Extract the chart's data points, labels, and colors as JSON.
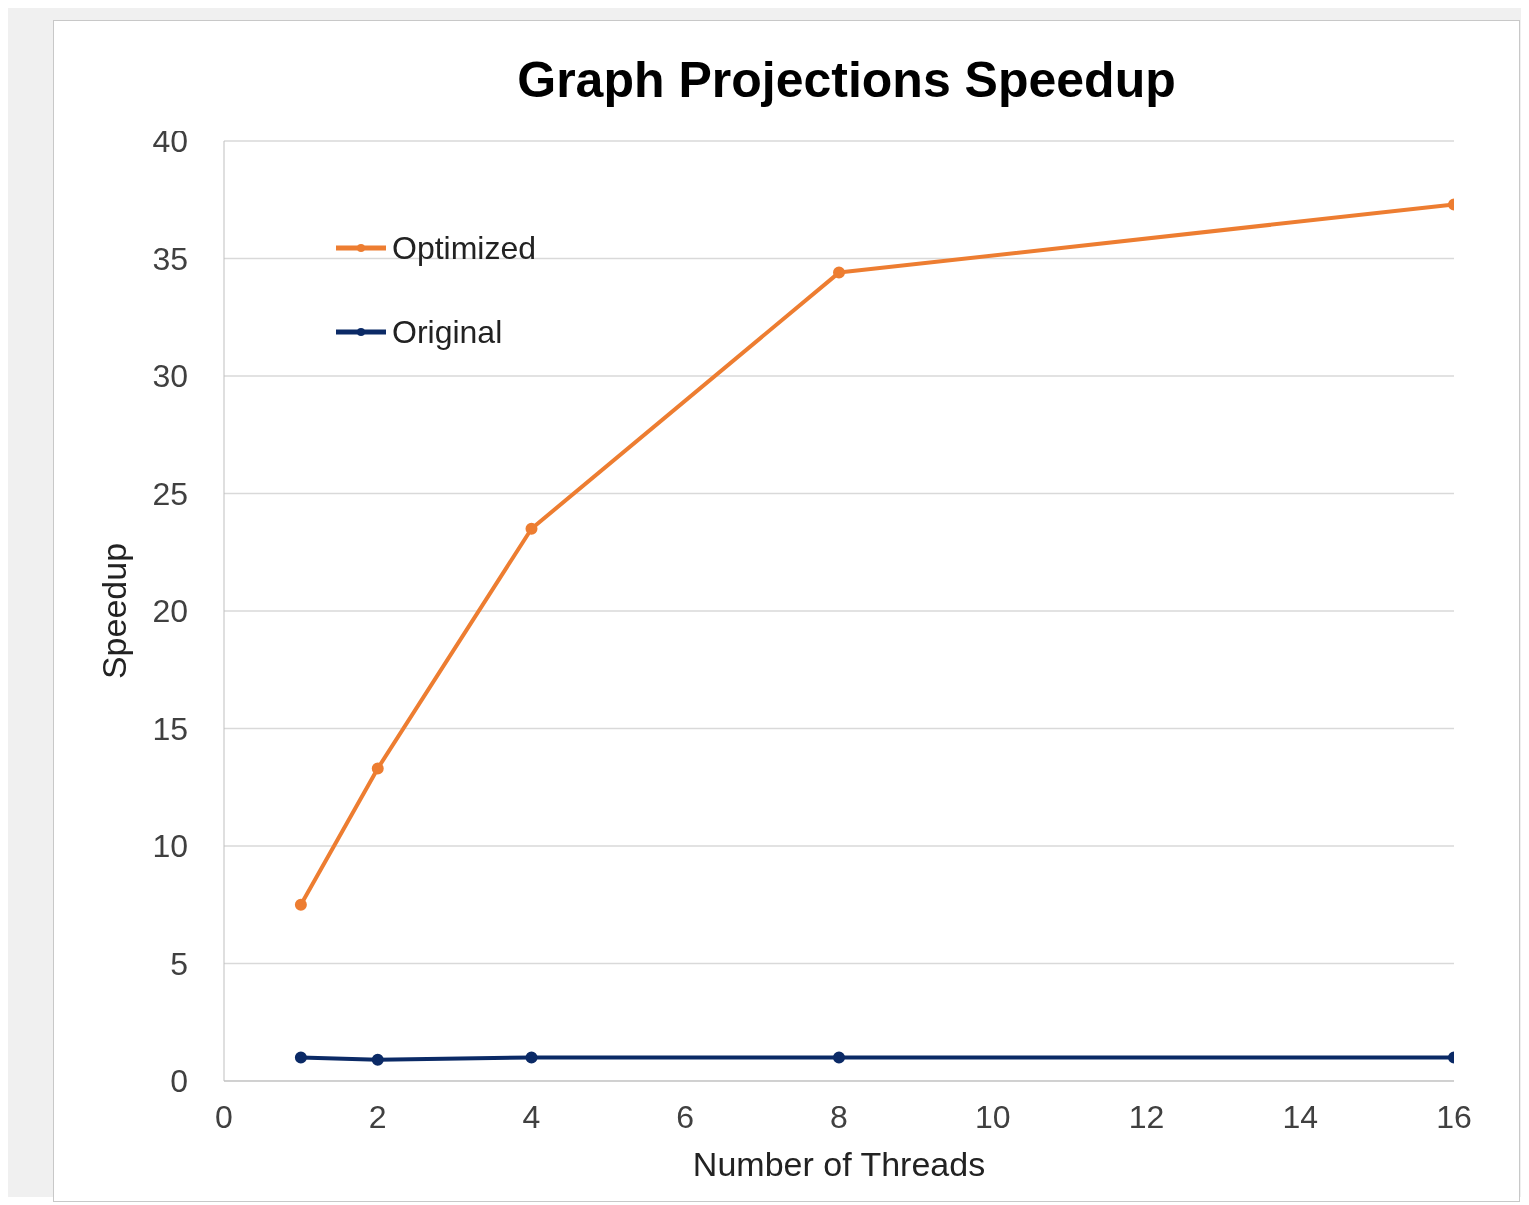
{
  "chart_data": {
    "type": "line",
    "title": "Graph Projections Speedup",
    "xlabel": "Number of Threads",
    "ylabel": "Speedup",
    "x": [
      1,
      2,
      4,
      8,
      16
    ],
    "series": [
      {
        "name": "Optimized",
        "color": "#ed7d31",
        "values": [
          7.5,
          13.3,
          23.5,
          34.4,
          37.3
        ]
      },
      {
        "name": "Original",
        "color": "#0b2a66",
        "values": [
          1.0,
          0.9,
          1.0,
          1.0,
          1.0
        ]
      }
    ],
    "xlim": [
      0,
      16
    ],
    "xticks": [
      0,
      2,
      4,
      6,
      8,
      10,
      12,
      14,
      16
    ],
    "ylim": [
      0,
      40
    ],
    "yticks": [
      0,
      5,
      10,
      15,
      20,
      25,
      30,
      35,
      40
    ],
    "grid": "y",
    "legend": "top left",
    "marker": "circle",
    "line_style": "solid"
  }
}
